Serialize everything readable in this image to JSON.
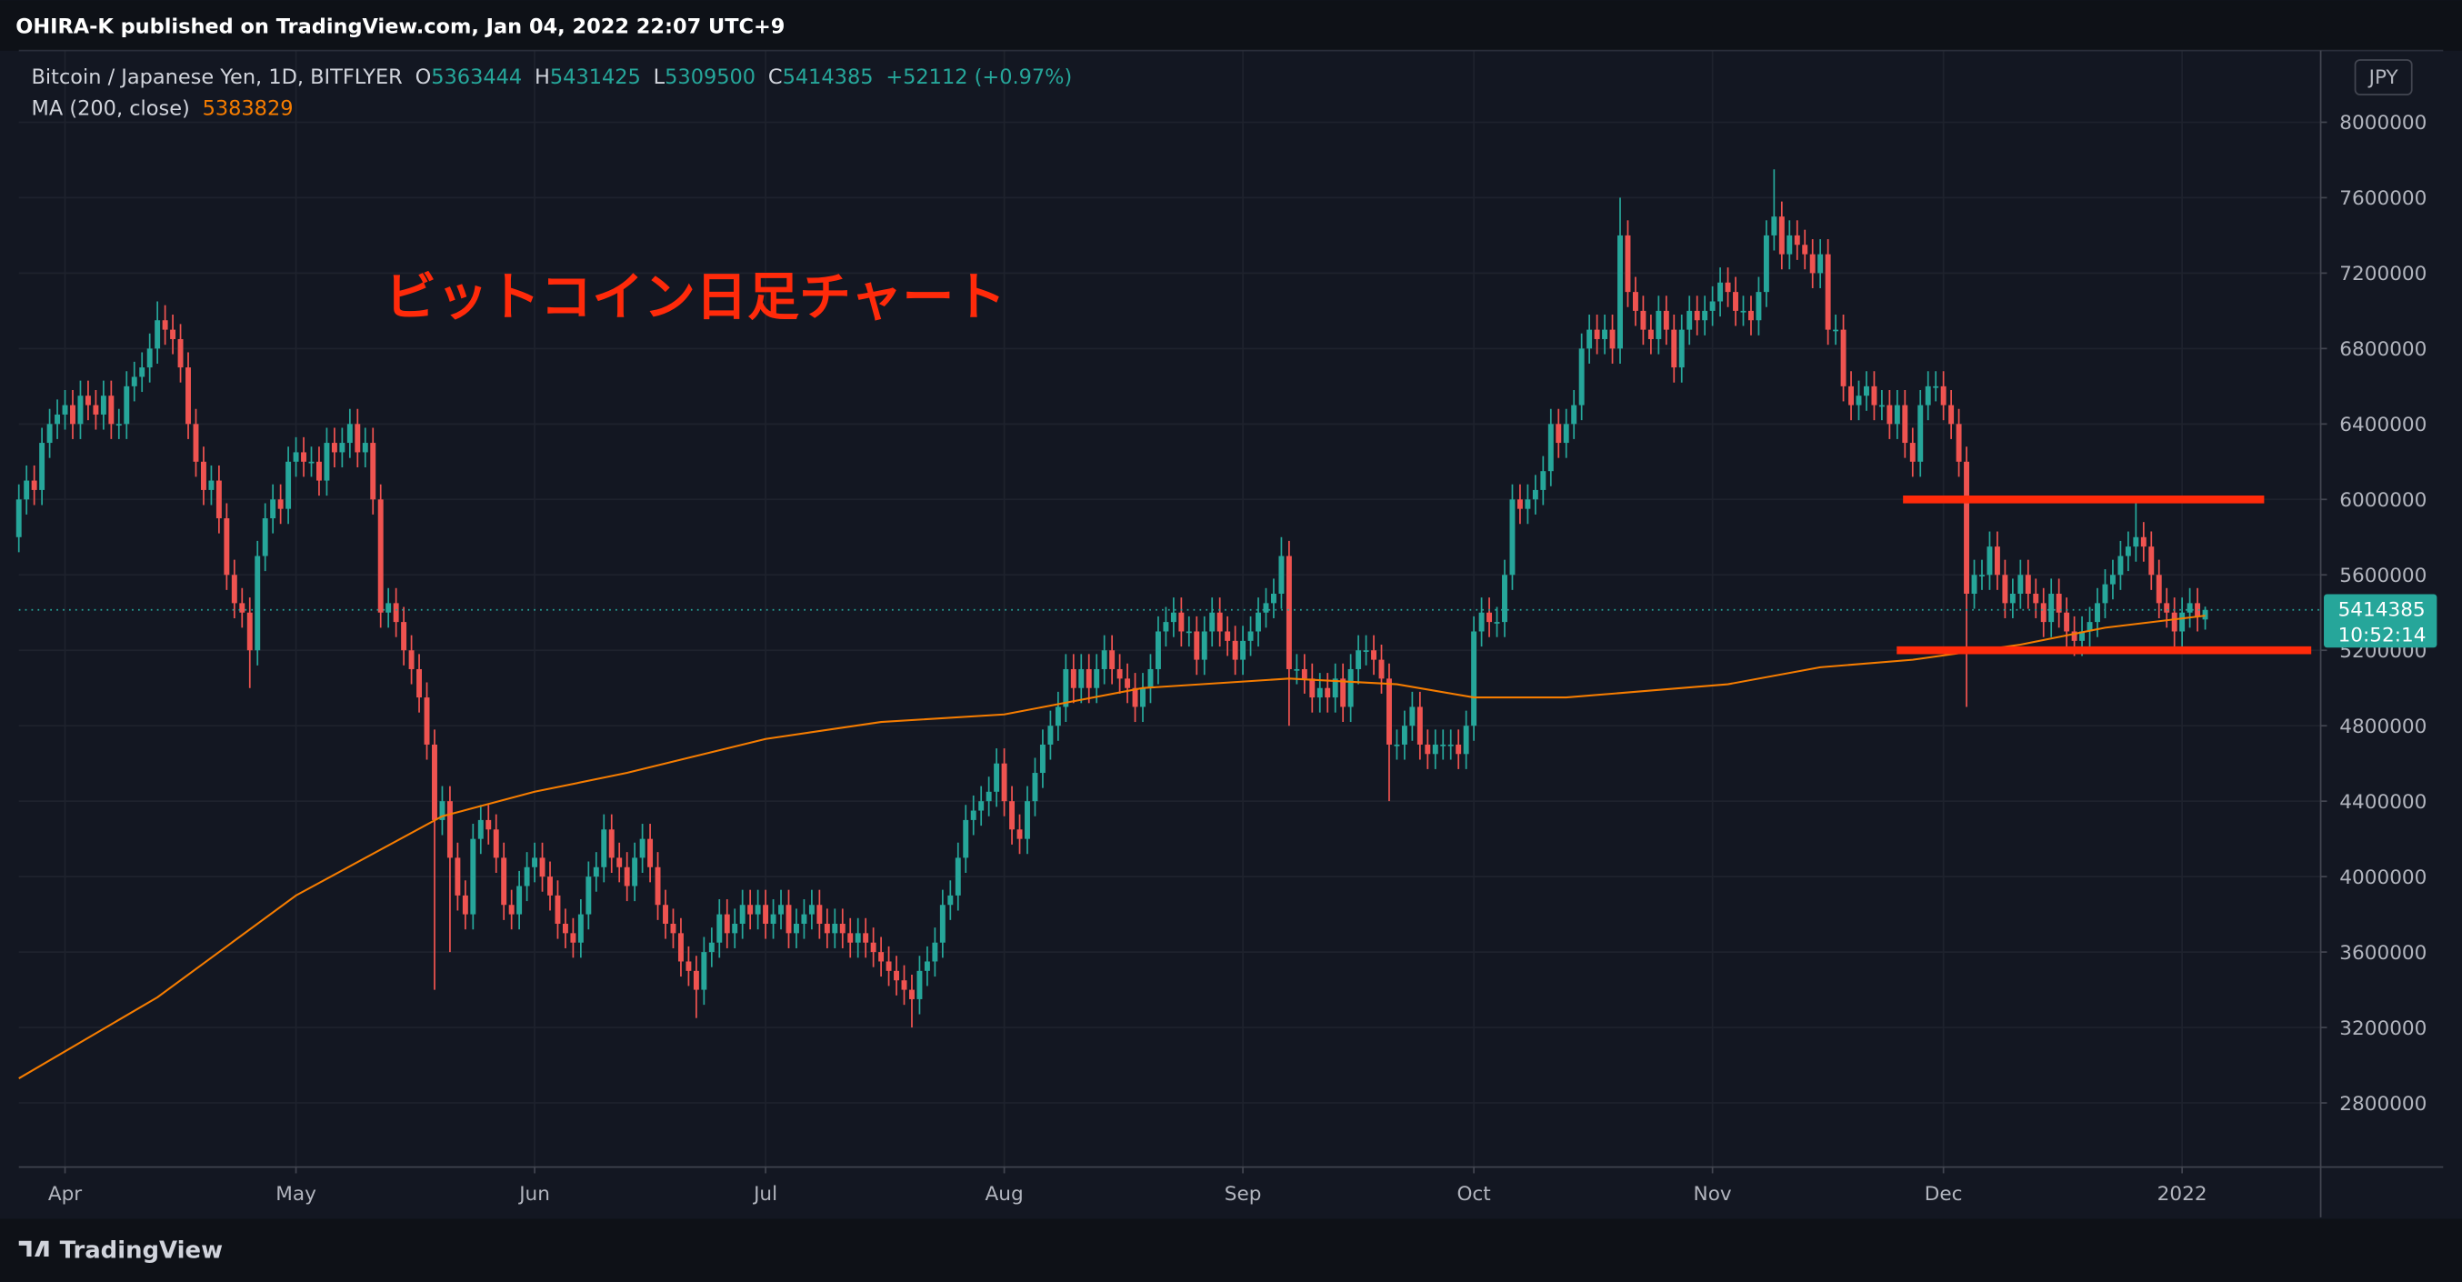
{
  "header": {
    "publisher": "OHIRA-K published on TradingView.com, Jan 04, 2022 22:07 UTC+9"
  },
  "chart_data": {
    "type": "candlestick",
    "title": "Bitcoin / Japanese Yen, 1D, BITFLYER",
    "ohlc_labels": [
      "O",
      "H",
      "L",
      "C"
    ],
    "change": "+52112 (+0.97%)",
    "currency": "JPY",
    "countdown": "10:52:14",
    "annotation": "ビットコイン日足チャート",
    "up_color": "#26a69a",
    "down_color": "#ef5350",
    "open": [
      5800000,
      6000000,
      6100000,
      6050000,
      6300000,
      6400000,
      6450000,
      6500000,
      6400000,
      6550000,
      6500000,
      6450000,
      6550000,
      6400000,
      6400000,
      6600000,
      6650000,
      6700000,
      6800000,
      6950000,
      6900000,
      6850000,
      6700000,
      6400000,
      6200000,
      6050000,
      6100000,
      5900000,
      5600000,
      5450000,
      5400000,
      5200000,
      5700000,
      5900000,
      6000000,
      5950000,
      6200000,
      6250000,
      6200000,
      6200000,
      6100000,
      6300000,
      6250000,
      6300000,
      6400000,
      6250000,
      6300000,
      6000000,
      5400000,
      5450000,
      5350000,
      5200000,
      5100000,
      4950000,
      4700000,
      4300000,
      4400000,
      4100000,
      3900000,
      3800000,
      4200000,
      4300000,
      4250000,
      4100000,
      3850000,
      3800000,
      3950000,
      4050000,
      4100000,
      4000000,
      3900000,
      3750000,
      3700000,
      3650000,
      3800000,
      4000000,
      4050000,
      4250000,
      4100000,
      4050000,
      3950000,
      4100000,
      4200000,
      4050000,
      3850000,
      3750000,
      3700000,
      3550000,
      3500000,
      3400000,
      3600000,
      3650000,
      3800000,
      3700000,
      3750000,
      3850000,
      3800000,
      3850000,
      3750000,
      3800000,
      3850000,
      3700000,
      3750000,
      3800000,
      3850000,
      3750000,
      3700000,
      3750000,
      3700000,
      3650000,
      3700000,
      3650000,
      3600000,
      3550000,
      3500000,
      3450000,
      3400000,
      3350000,
      3500000,
      3550000,
      3650000,
      3850000,
      3900000,
      4100000,
      4300000,
      4350000,
      4400000,
      4450000,
      4600000,
      4400000,
      4250000,
      4200000,
      4400000,
      4550000,
      4700000,
      4800000,
      4900000,
      5100000,
      5000000,
      5100000,
      5000000,
      5100000,
      5200000,
      5100000,
      5050000,
      5000000,
      4900000,
      5000000,
      5100000,
      5300000,
      5350000,
      5400000,
      5300000,
      5300000,
      5150000,
      5300000,
      5400000,
      5300000,
      5250000,
      5150000,
      5250000,
      5300000,
      5400000,
      5450000,
      5500000,
      5700000,
      5100000,
      5100000,
      5050000,
      4950000,
      5000000,
      4950000,
      5050000,
      4900000,
      5100000,
      5200000,
      5200000,
      5150000,
      5050000,
      4700000,
      4700000,
      4800000,
      4900000,
      4700000,
      4650000,
      4700000,
      4700000,
      4700000,
      4650000,
      4800000,
      5300000,
      5400000,
      5350000,
      5350000,
      5600000,
      6000000,
      5950000,
      6000000,
      6050000,
      6150000,
      6400000,
      6300000,
      6400000,
      6500000,
      6800000,
      6900000,
      6850000,
      6900000,
      6800000,
      7400000,
      7100000,
      7000000,
      6900000,
      6850000,
      7000000,
      6900000,
      6700000,
      6900000,
      7000000,
      6950000,
      7000000,
      7050000,
      7150000,
      7100000,
      7000000,
      7000000,
      6950000,
      7100000,
      7400000,
      7500000,
      7300000,
      7400000,
      7350000,
      7300000,
      7200000,
      7300000,
      6900000,
      6900000,
      6600000,
      6500000,
      6550000,
      6600000,
      6500000,
      6500000,
      6400000,
      6500000,
      6300000,
      6200000,
      6500000,
      6600000,
      6600000,
      6500000,
      6400000,
      6200000,
      5500000,
      5600000,
      5600000,
      5750000,
      5600000,
      5450000,
      5500000,
      5600000,
      5500000,
      5450000,
      5350000,
      5500000,
      5400000,
      5300000,
      5250000,
      5300000,
      5350000,
      5450000,
      5550000,
      5600000,
      5700000,
      5750000,
      5800000,
      5750000,
      5600000,
      5450000,
      5400000,
      5300000,
      5400000,
      5450000,
      5363444
    ],
    "high": [
      6080000,
      6180000,
      6180000,
      6380000,
      6480000,
      6530000,
      6580000,
      6580000,
      6630000,
      6630000,
      6580000,
      6630000,
      6630000,
      6480000,
      6680000,
      6730000,
      6780000,
      6880000,
      7050000,
      7030000,
      6980000,
      6930000,
      6780000,
      6480000,
      6280000,
      6180000,
      6180000,
      5980000,
      5680000,
      5530000,
      5480000,
      5780000,
      5980000,
      6080000,
      6080000,
      6280000,
      6330000,
      6330000,
      6280000,
      6280000,
      6380000,
      6380000,
      6380000,
      6480000,
      6480000,
      6380000,
      6380000,
      6080000,
      5530000,
      5530000,
      5430000,
      5280000,
      5180000,
      5030000,
      4780000,
      4480000,
      4480000,
      4180000,
      3980000,
      4280000,
      4380000,
      4380000,
      4330000,
      4180000,
      3930000,
      4030000,
      4130000,
      4180000,
      4180000,
      4080000,
      3980000,
      3830000,
      3780000,
      3880000,
      4080000,
      4130000,
      4330000,
      4330000,
      4180000,
      4130000,
      4180000,
      4280000,
      4280000,
      4130000,
      3930000,
      3830000,
      3780000,
      3630000,
      3580000,
      3680000,
      3730000,
      3880000,
      3880000,
      3830000,
      3930000,
      3930000,
      3930000,
      3930000,
      3880000,
      3930000,
      3930000,
      3830000,
      3880000,
      3930000,
      3930000,
      3830000,
      3830000,
      3830000,
      3780000,
      3780000,
      3780000,
      3730000,
      3680000,
      3630000,
      3580000,
      3530000,
      3480000,
      3580000,
      3630000,
      3730000,
      3930000,
      3980000,
      4180000,
      4380000,
      4430000,
      4480000,
      4530000,
      4680000,
      4680000,
      4480000,
      4330000,
      4480000,
      4630000,
      4780000,
      4880000,
      4980000,
      5180000,
      5180000,
      5180000,
      5180000,
      5180000,
      5280000,
      5280000,
      5180000,
      5130000,
      5080000,
      5080000,
      5180000,
      5380000,
      5430000,
      5480000,
      5480000,
      5380000,
      5380000,
      5380000,
      5480000,
      5480000,
      5380000,
      5330000,
      5330000,
      5380000,
      5480000,
      5530000,
      5580000,
      5800000,
      5780000,
      5180000,
      5180000,
      5130000,
      5080000,
      5080000,
      5130000,
      5130000,
      5180000,
      5280000,
      5280000,
      5280000,
      5230000,
      5130000,
      4780000,
      4880000,
      4980000,
      4980000,
      4780000,
      4780000,
      4780000,
      4780000,
      4780000,
      4880000,
      5380000,
      5480000,
      5480000,
      5430000,
      5680000,
      6080000,
      6080000,
      6080000,
      6130000,
      6230000,
      6480000,
      6480000,
      6480000,
      6580000,
      6880000,
      6980000,
      6980000,
      6980000,
      6980000,
      7600000,
      7480000,
      7180000,
      7080000,
      6980000,
      7080000,
      7080000,
      6980000,
      6980000,
      7080000,
      7080000,
      7080000,
      7130000,
      7230000,
      7230000,
      7180000,
      7080000,
      7080000,
      7180000,
      7480000,
      7750000,
      7580000,
      7480000,
      7480000,
      7430000,
      7380000,
      7380000,
      7380000,
      6980000,
      6980000,
      6680000,
      6630000,
      6680000,
      6680000,
      6580000,
      6580000,
      6580000,
      6580000,
      6380000,
      6580000,
      6680000,
      6680000,
      6680000,
      6580000,
      6480000,
      6280000,
      5680000,
      5680000,
      5830000,
      5830000,
      5680000,
      5580000,
      5680000,
      5680000,
      5580000,
      5530000,
      5580000,
      5580000,
      5480000,
      5380000,
      5380000,
      5430000,
      5530000,
      5630000,
      5680000,
      5780000,
      5830000,
      5980000,
      5880000,
      5830000,
      5680000,
      5530000,
      5480000,
      5480000,
      5530000,
      5530000,
      5431425
    ],
    "low": [
      5720000,
      5920000,
      5970000,
      5970000,
      6220000,
      6320000,
      6370000,
      6320000,
      6320000,
      6420000,
      6370000,
      6370000,
      6320000,
      6320000,
      6320000,
      6520000,
      6570000,
      6620000,
      6720000,
      6820000,
      6770000,
      6620000,
      6320000,
      6120000,
      5970000,
      5970000,
      5820000,
      5520000,
      5370000,
      5320000,
      5000000,
      5120000,
      5620000,
      5820000,
      5870000,
      5870000,
      6120000,
      6120000,
      6120000,
      6020000,
      6020000,
      6170000,
      6170000,
      6220000,
      6170000,
      6170000,
      5920000,
      5320000,
      5320000,
      5270000,
      5120000,
      5020000,
      4870000,
      4620000,
      3400000,
      4220000,
      3600000,
      3820000,
      3720000,
      3720000,
      4120000,
      4170000,
      4020000,
      3770000,
      3720000,
      3720000,
      3870000,
      3970000,
      3920000,
      3820000,
      3670000,
      3620000,
      3570000,
      3570000,
      3720000,
      3920000,
      3970000,
      4020000,
      3970000,
      3870000,
      3870000,
      4020000,
      3970000,
      3770000,
      3670000,
      3620000,
      3470000,
      3420000,
      3250000,
      3320000,
      3520000,
      3570000,
      3620000,
      3620000,
      3670000,
      3720000,
      3720000,
      3670000,
      3670000,
      3720000,
      3620000,
      3620000,
      3670000,
      3720000,
      3670000,
      3620000,
      3620000,
      3620000,
      3570000,
      3570000,
      3570000,
      3520000,
      3470000,
      3420000,
      3370000,
      3320000,
      3200000,
      3270000,
      3420000,
      3470000,
      3570000,
      3770000,
      3820000,
      4020000,
      4220000,
      4270000,
      4320000,
      4370000,
      4320000,
      4170000,
      4120000,
      4120000,
      4320000,
      4470000,
      4620000,
      4720000,
      4820000,
      4920000,
      4920000,
      4920000,
      4920000,
      5020000,
      5020000,
      4970000,
      4920000,
      4820000,
      4820000,
      4920000,
      5020000,
      5220000,
      5270000,
      5220000,
      5220000,
      5070000,
      5070000,
      5220000,
      5220000,
      5170000,
      5070000,
      5070000,
      5170000,
      5220000,
      5320000,
      5370000,
      5420000,
      4800000,
      5020000,
      4970000,
      4870000,
      4870000,
      4870000,
      4870000,
      4820000,
      4820000,
      5020000,
      5120000,
      5070000,
      4970000,
      4400000,
      4620000,
      4620000,
      4720000,
      4620000,
      4570000,
      4570000,
      4620000,
      4620000,
      4570000,
      4570000,
      4720000,
      5220000,
      5270000,
      5270000,
      5270000,
      5520000,
      5870000,
      5870000,
      5920000,
      5970000,
      6070000,
      6220000,
      6220000,
      6320000,
      6420000,
      6720000,
      6770000,
      6770000,
      6720000,
      6720000,
      7020000,
      6920000,
      6820000,
      6770000,
      6770000,
      6820000,
      6620000,
      6620000,
      6820000,
      6870000,
      6870000,
      6920000,
      6970000,
      7020000,
      6920000,
      6920000,
      6870000,
      6870000,
      7020000,
      7320000,
      7220000,
      7220000,
      7270000,
      7220000,
      7120000,
      7120000,
      6820000,
      6820000,
      6520000,
      6420000,
      6420000,
      6470000,
      6420000,
      6420000,
      6320000,
      6320000,
      6220000,
      6120000,
      6120000,
      6420000,
      6520000,
      6420000,
      6320000,
      6120000,
      4900000,
      5420000,
      5520000,
      5520000,
      5520000,
      5370000,
      5370000,
      5420000,
      5420000,
      5370000,
      5270000,
      5270000,
      5320000,
      5220000,
      5170000,
      5170000,
      5220000,
      5270000,
      5370000,
      5470000,
      5520000,
      5620000,
      5670000,
      5670000,
      5520000,
      5370000,
      5320000,
      5220000,
      5220000,
      5320000,
      5300000,
      5309500
    ],
    "close": [
      6000000,
      6100000,
      6050000,
      6300000,
      6400000,
      6450000,
      6500000,
      6400000,
      6550000,
      6500000,
      6450000,
      6550000,
      6400000,
      6400000,
      6600000,
      6650000,
      6700000,
      6800000,
      6950000,
      6900000,
      6850000,
      6700000,
      6400000,
      6200000,
      6050000,
      6100000,
      5900000,
      5600000,
      5450000,
      5400000,
      5200000,
      5700000,
      5900000,
      6000000,
      5950000,
      6200000,
      6250000,
      6200000,
      6200000,
      6100000,
      6300000,
      6250000,
      6300000,
      6400000,
      6250000,
      6300000,
      6000000,
      5400000,
      5450000,
      5350000,
      5200000,
      5100000,
      4950000,
      4700000,
      4300000,
      4400000,
      4100000,
      3900000,
      3800000,
      4200000,
      4300000,
      4250000,
      4100000,
      3850000,
      3800000,
      3950000,
      4050000,
      4100000,
      4000000,
      3900000,
      3750000,
      3700000,
      3650000,
      3800000,
      4000000,
      4050000,
      4250000,
      4100000,
      4050000,
      3950000,
      4100000,
      4200000,
      4050000,
      3850000,
      3750000,
      3700000,
      3550000,
      3500000,
      3400000,
      3600000,
      3650000,
      3800000,
      3700000,
      3750000,
      3850000,
      3800000,
      3850000,
      3750000,
      3800000,
      3850000,
      3700000,
      3750000,
      3800000,
      3850000,
      3750000,
      3700000,
      3750000,
      3700000,
      3650000,
      3700000,
      3650000,
      3600000,
      3550000,
      3500000,
      3450000,
      3400000,
      3350000,
      3500000,
      3550000,
      3650000,
      3850000,
      3900000,
      4100000,
      4300000,
      4350000,
      4400000,
      4450000,
      4600000,
      4400000,
      4250000,
      4200000,
      4400000,
      4550000,
      4700000,
      4800000,
      4900000,
      5100000,
      5000000,
      5100000,
      5000000,
      5100000,
      5200000,
      5100000,
      5050000,
      5000000,
      4900000,
      5000000,
      5100000,
      5300000,
      5350000,
      5400000,
      5300000,
      5300000,
      5150000,
      5300000,
      5400000,
      5300000,
      5250000,
      5150000,
      5250000,
      5300000,
      5400000,
      5450000,
      5500000,
      5700000,
      5100000,
      5100000,
      5050000,
      4950000,
      5000000,
      4950000,
      5050000,
      4900000,
      5100000,
      5200000,
      5200000,
      5150000,
      5050000,
      4700000,
      4700000,
      4800000,
      4900000,
      4700000,
      4650000,
      4700000,
      4700000,
      4700000,
      4650000,
      4800000,
      5300000,
      5400000,
      5350000,
      5350000,
      5600000,
      6000000,
      5950000,
      6000000,
      6050000,
      6150000,
      6400000,
      6300000,
      6400000,
      6500000,
      6800000,
      6900000,
      6850000,
      6900000,
      6800000,
      7400000,
      7100000,
      7000000,
      6900000,
      6850000,
      7000000,
      6900000,
      6700000,
      6900000,
      7000000,
      6950000,
      7000000,
      7050000,
      7150000,
      7100000,
      7000000,
      7000000,
      6950000,
      7100000,
      7400000,
      7500000,
      7300000,
      7400000,
      7350000,
      7300000,
      7200000,
      7300000,
      6900000,
      6900000,
      6600000,
      6500000,
      6550000,
      6600000,
      6500000,
      6500000,
      6400000,
      6500000,
      6300000,
      6200000,
      6500000,
      6600000,
      6600000,
      6500000,
      6400000,
      6200000,
      5500000,
      5600000,
      5600000,
      5750000,
      5600000,
      5450000,
      5500000,
      5600000,
      5500000,
      5450000,
      5350000,
      5500000,
      5400000,
      5300000,
      5250000,
      5300000,
      5350000,
      5450000,
      5550000,
      5600000,
      5700000,
      5750000,
      5800000,
      5750000,
      5600000,
      5450000,
      5400000,
      5300000,
      5400000,
      5450000,
      5380000,
      5414385
    ],
    "ma": {
      "name": "MA (200, close)",
      "color": "#f57c00",
      "x": [
        0,
        18,
        36,
        55,
        67,
        79,
        97,
        112,
        128,
        146,
        165,
        179,
        189,
        201,
        222,
        234,
        246,
        260,
        271,
        284
      ],
      "values": [
        2930000,
        3360000,
        3900000,
        4320000,
        4450000,
        4550000,
        4730000,
        4820000,
        4860000,
        5000000,
        5050000,
        5020000,
        4950000,
        4950000,
        5020000,
        5110000,
        5150000,
        5230000,
        5320000,
        5383829
      ]
    },
    "levels": [
      6000000,
      5200000
    ],
    "level_color": "#ff2a0a",
    "xlim": [
      0,
      299
    ],
    "xticks": [
      {
        "value": 6,
        "label": "Apr"
      },
      {
        "value": 36,
        "label": "May"
      },
      {
        "value": 67,
        "label": "Jun"
      },
      {
        "value": 97,
        "label": "Jul"
      },
      {
        "value": 128,
        "label": "Aug"
      },
      {
        "value": 159,
        "label": "Sep"
      },
      {
        "value": 189,
        "label": "Oct"
      },
      {
        "value": 220,
        "label": "Nov"
      },
      {
        "value": 250,
        "label": "Dec"
      },
      {
        "value": 281,
        "label": "2022"
      }
    ],
    "ylim": [
      2460000,
      8380000
    ],
    "yticks": [
      2800000,
      3200000,
      3600000,
      4000000,
      4400000,
      4800000,
      5200000,
      5600000,
      6000000,
      6400000,
      6800000,
      7200000,
      7600000,
      8000000
    ],
    "grid": true
  },
  "footer": {
    "brand": "TradingView"
  }
}
